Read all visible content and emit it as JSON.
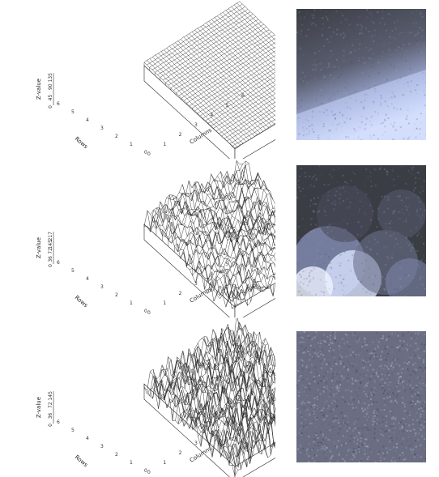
{
  "panels": [
    {
      "id": "smooth",
      "z_axis_label": "Z-value",
      "z_ticks": [
        "0",
        "45",
        "90",
        "135"
      ],
      "row_axis_label": "Rows",
      "row_ticks": [
        "0",
        "1",
        "2",
        "3",
        "4",
        "5",
        "6"
      ],
      "col_axis_label": "Columns",
      "col_ticks": [
        "0",
        "1",
        "2",
        "3",
        "4",
        "5",
        "6"
      ]
    },
    {
      "id": "medium",
      "z_axis_label": "Z-value",
      "z_ticks": [
        "0",
        "36",
        "72",
        "145",
        "217"
      ],
      "row_axis_label": "Rows",
      "row_ticks": [
        "0",
        "1",
        "2",
        "3",
        "4",
        "5",
        "6"
      ],
      "col_axis_label": "Columns",
      "col_ticks": [
        "0",
        "1",
        "2",
        "3",
        "4",
        "5",
        "6"
      ]
    },
    {
      "id": "rough",
      "z_axis_label": "Z-value",
      "z_ticks": [
        "0",
        "36",
        "72",
        "145"
      ],
      "row_axis_label": "Rows",
      "row_ticks": [
        "0",
        "1",
        "2",
        "3",
        "4",
        "5",
        "6"
      ],
      "col_axis_label": "Columns",
      "col_ticks": [
        "0",
        "1",
        "2",
        "3",
        "4",
        "5",
        "6"
      ]
    }
  ],
  "colors": {
    "mesh": "#2b2b2b",
    "dark": "#3b3d44",
    "mid": "#6a6f86",
    "light": "#dfe8ff"
  }
}
